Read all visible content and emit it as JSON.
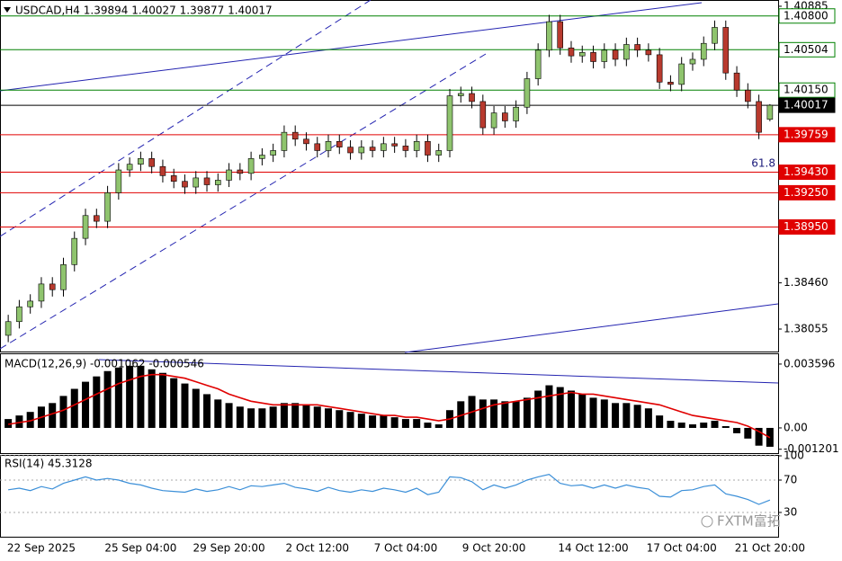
{
  "chart_data": [
    {
      "type": "candlestick",
      "title": "USDCAD,H4  1.39894 1.40027 1.39877 1.40017",
      "categories": [
        null,
        null,
        null,
        "22 Sep 2025",
        null,
        null,
        null,
        null,
        null,
        null,
        null,
        null,
        "25 Sep 04:00",
        null,
        null,
        null,
        null,
        null,
        null,
        null,
        "29 Sep 20:00",
        null,
        null,
        null,
        null,
        null,
        null,
        null,
        "2 Oct 12:00",
        null,
        null,
        null,
        null,
        null,
        null,
        null,
        "7 Oct 04:00",
        null,
        null,
        null,
        null,
        null,
        null,
        null,
        "9 Oct 20:00",
        null,
        null,
        null,
        null,
        null,
        null,
        null,
        null,
        "14 Oct 12:00",
        null,
        null,
        null,
        null,
        null,
        null,
        null,
        "17 Oct 04:00",
        null,
        null,
        null,
        null,
        null,
        null,
        null,
        "21 Oct 20:00"
      ],
      "ohlc": [
        [
          1.38,
          1.3818,
          1.3794,
          1.3812
        ],
        [
          1.3812,
          1.3831,
          1.3806,
          1.3825
        ],
        [
          1.3825,
          1.3836,
          1.3819,
          1.383
        ],
        [
          1.383,
          1.3851,
          1.3824,
          1.3845
        ],
        [
          1.3845,
          1.3851,
          1.3834,
          1.384
        ],
        [
          1.384,
          1.3868,
          1.3834,
          1.3862
        ],
        [
          1.3862,
          1.3891,
          1.3856,
          1.3885
        ],
        [
          1.3885,
          1.3911,
          1.3879,
          1.3905
        ],
        [
          1.3905,
          1.3911,
          1.3894,
          1.39
        ],
        [
          1.39,
          1.3931,
          1.3894,
          1.3925
        ],
        [
          1.3925,
          1.3951,
          1.3919,
          1.3945
        ],
        [
          1.3945,
          1.3956,
          1.3939,
          1.395
        ],
        [
          1.395,
          1.3961,
          1.3944,
          1.3955
        ],
        [
          1.3955,
          1.3961,
          1.3942,
          1.3948
        ],
        [
          1.3948,
          1.3954,
          1.3934,
          1.394
        ],
        [
          1.394,
          1.3946,
          1.3929,
          1.3935
        ],
        [
          1.3935,
          1.3941,
          1.3924,
          1.393
        ],
        [
          1.393,
          1.3944,
          1.3924,
          1.3938
        ],
        [
          1.3938,
          1.3944,
          1.3926,
          1.3932
        ],
        [
          1.3932,
          1.3942,
          1.3926,
          1.3936
        ],
        [
          1.3936,
          1.3951,
          1.393,
          1.3945
        ],
        [
          1.3945,
          1.3951,
          1.3936,
          1.3942
        ],
        [
          1.3942,
          1.3961,
          1.3936,
          1.3955
        ],
        [
          1.3955,
          1.3964,
          1.3949,
          1.3958
        ],
        [
          1.3958,
          1.3968,
          1.3952,
          1.3962
        ],
        [
          1.3962,
          1.3984,
          1.3956,
          1.3978
        ],
        [
          1.3978,
          1.3984,
          1.3966,
          1.3972
        ],
        [
          1.3972,
          1.3978,
          1.3962,
          1.3968
        ],
        [
          1.3968,
          1.3974,
          1.3956,
          1.3962
        ],
        [
          1.3962,
          1.3976,
          1.3956,
          1.397
        ],
        [
          1.397,
          1.3976,
          1.3959,
          1.3965
        ],
        [
          1.3965,
          1.3971,
          1.3954,
          1.396
        ],
        [
          1.396,
          1.3971,
          1.3954,
          1.3965
        ],
        [
          1.3965,
          1.3971,
          1.3956,
          1.3962
        ],
        [
          1.3962,
          1.3974,
          1.3956,
          1.3968
        ],
        [
          1.3968,
          1.3974,
          1.396,
          1.3966
        ],
        [
          1.3966,
          1.3972,
          1.3956,
          1.3962
        ],
        [
          1.3962,
          1.3976,
          1.3956,
          1.397
        ],
        [
          1.397,
          1.3976,
          1.3952,
          1.3958
        ],
        [
          1.3958,
          1.3968,
          1.3952,
          1.3962
        ],
        [
          1.3962,
          1.4016,
          1.3956,
          1.401
        ],
        [
          1.401,
          1.4018,
          1.4004,
          1.4012
        ],
        [
          1.4012,
          1.4018,
          1.3999,
          1.4005
        ],
        [
          1.4005,
          1.4011,
          1.3976,
          1.3982
        ],
        [
          1.3982,
          1.4001,
          1.3976,
          1.3995
        ],
        [
          1.3995,
          1.4001,
          1.3982,
          1.3988
        ],
        [
          1.3988,
          1.4006,
          1.3982,
          1.4
        ],
        [
          1.4,
          1.4031,
          1.3994,
          1.4025
        ],
        [
          1.4025,
          1.4056,
          1.4019,
          1.405
        ],
        [
          1.405,
          1.4081,
          1.4044,
          1.4075
        ],
        [
          1.4075,
          1.4081,
          1.4046,
          1.4052
        ],
        [
          1.4052,
          1.4058,
          1.4039,
          1.4045
        ],
        [
          1.4045,
          1.4054,
          1.4039,
          1.4048
        ],
        [
          1.4048,
          1.4054,
          1.4034,
          1.404
        ],
        [
          1.404,
          1.4056,
          1.4034,
          1.405
        ],
        [
          1.405,
          1.4056,
          1.4036,
          1.4042
        ],
        [
          1.4042,
          1.4061,
          1.4036,
          1.4055
        ],
        [
          1.4055,
          1.4061,
          1.4044,
          1.405
        ],
        [
          1.405,
          1.4056,
          1.404,
          1.4046
        ],
        [
          1.4046,
          1.4052,
          1.4016,
          1.4022
        ],
        [
          1.4022,
          1.4028,
          1.4014,
          1.402
        ],
        [
          1.402,
          1.4044,
          1.4014,
          1.4038
        ],
        [
          1.4038,
          1.4048,
          1.4032,
          1.4042
        ],
        [
          1.4042,
          1.4062,
          1.4036,
          1.4056
        ],
        [
          1.4056,
          1.4076,
          1.405,
          1.407
        ],
        [
          1.407,
          1.4076,
          1.4024,
          1.403
        ],
        [
          1.403,
          1.4036,
          1.4009,
          1.4015
        ],
        [
          1.4015,
          1.4021,
          1.3999,
          1.4005
        ],
        [
          1.4005,
          1.4011,
          1.3972,
          1.3978
        ],
        [
          1.39894,
          1.40027,
          1.39877,
          1.40017
        ]
      ],
      "up_color": "#8fc46e",
      "down_color": "#b83a2e",
      "ylim": [
        1.3785,
        1.4094
      ],
      "yticks": [
        1.40885,
        {
          "value": 1.3846,
          "label": "1.38460"
        },
        {
          "value": 1.38055,
          "label": "1.38055"
        }
      ],
      "levels": [
        {
          "value": 1.408,
          "label": "1.40800",
          "color": "#008000",
          "box": "outlined"
        },
        {
          "value": 1.40504,
          "label": "1.40504",
          "color": "#008000",
          "box": "outlined"
        },
        {
          "value": 1.4015,
          "label": "1.40150",
          "color": "#008000",
          "box": "outlined"
        },
        {
          "value": 1.40017,
          "label": "1.40017",
          "color": "#000000",
          "box": "filled"
        },
        {
          "value": 1.39759,
          "label": "1.39759",
          "color": "#e00000",
          "box": "filled"
        },
        {
          "value": 1.3943,
          "label": "1.39430",
          "color": "#e00000",
          "box": "filled"
        },
        {
          "value": 1.3925,
          "label": "1.39250",
          "color": "#e00000",
          "box": "filled"
        },
        {
          "value": 1.3895,
          "label": "1.38950",
          "color": "#e00000",
          "box": "filled"
        }
      ],
      "annotation": "61.8"
    },
    {
      "type": "macd",
      "title": "MACD(12,26,9) -0.001062 -0.000546",
      "values": [
        0.0005,
        0.0007,
        0.0009,
        0.0012,
        0.0014,
        0.0018,
        0.0022,
        0.0026,
        0.0029,
        0.0032,
        0.0034,
        0.0035,
        0.0035,
        0.0033,
        0.0031,
        0.0028,
        0.0025,
        0.0022,
        0.0019,
        0.0016,
        0.0014,
        0.0012,
        0.0011,
        0.0011,
        0.0012,
        0.0014,
        0.0014,
        0.0013,
        0.0012,
        0.0011,
        0.001,
        0.0009,
        0.0008,
        0.0007,
        0.0007,
        0.0006,
        0.0005,
        0.0005,
        0.0003,
        0.0002,
        0.001,
        0.0015,
        0.0018,
        0.0016,
        0.0016,
        0.0015,
        0.0015,
        0.0017,
        0.0021,
        0.0024,
        0.0023,
        0.0021,
        0.0019,
        0.0017,
        0.0016,
        0.0014,
        0.0014,
        0.0013,
        0.0011,
        0.0007,
        0.0004,
        0.0003,
        0.0002,
        0.0003,
        0.0004,
        0.0001,
        -0.0003,
        -0.0006,
        -0.001,
        -0.001062
      ],
      "color": "#000000",
      "signal": {
        "values": [
          0.0002,
          0.0003,
          0.0004,
          0.0006,
          0.0008,
          0.001,
          0.0013,
          0.0016,
          0.0019,
          0.0022,
          0.0025,
          0.0027,
          0.0029,
          0.003,
          0.003,
          0.0029,
          0.0028,
          0.0026,
          0.0024,
          0.0022,
          0.0019,
          0.0017,
          0.0015,
          0.0014,
          0.0013,
          0.0013,
          0.0013,
          0.0013,
          0.0013,
          0.0012,
          0.0011,
          0.001,
          0.0009,
          0.0008,
          0.0007,
          0.0007,
          0.0006,
          0.0006,
          0.0005,
          0.0004,
          0.0005,
          0.0007,
          0.0009,
          0.0011,
          0.0013,
          0.0014,
          0.0015,
          0.0016,
          0.0017,
          0.0018,
          0.0019,
          0.002,
          0.0019,
          0.0019,
          0.0018,
          0.0017,
          0.0016,
          0.0015,
          0.0014,
          0.0013,
          0.0011,
          0.0009,
          0.0007,
          0.0006,
          0.0005,
          0.0004,
          0.0003,
          0.0001,
          -0.0002,
          -0.000546
        ],
        "color": "#e00000"
      },
      "ylim": [
        -0.00147,
        0.00415
      ],
      "yticks": [
        0.003596,
        {
          "value": 0,
          "label": "0.00"
        },
        -0.001201
      ]
    },
    {
      "type": "line",
      "title": "RSI(14) 45.3128",
      "values": [
        58,
        60,
        57,
        62,
        59,
        66,
        70,
        74,
        70,
        72,
        70,
        66,
        64,
        60,
        57,
        56,
        55,
        59,
        56,
        58,
        62,
        58,
        63,
        62,
        64,
        66,
        61,
        59,
        56,
        61,
        57,
        55,
        58,
        56,
        60,
        58,
        55,
        60,
        52,
        55,
        74,
        73,
        68,
        58,
        64,
        60,
        64,
        70,
        74,
        77,
        66,
        63,
        64,
        60,
        64,
        60,
        64,
        61,
        59,
        50,
        49,
        57,
        58,
        62,
        64,
        53,
        50,
        46,
        40,
        45.3128
      ],
      "color": "#3b8fd8",
      "ylim": [
        0,
        100
      ],
      "yticks": [
        100,
        70,
        30
      ],
      "grid": true
    }
  ],
  "watermark": "FXTM富拓"
}
